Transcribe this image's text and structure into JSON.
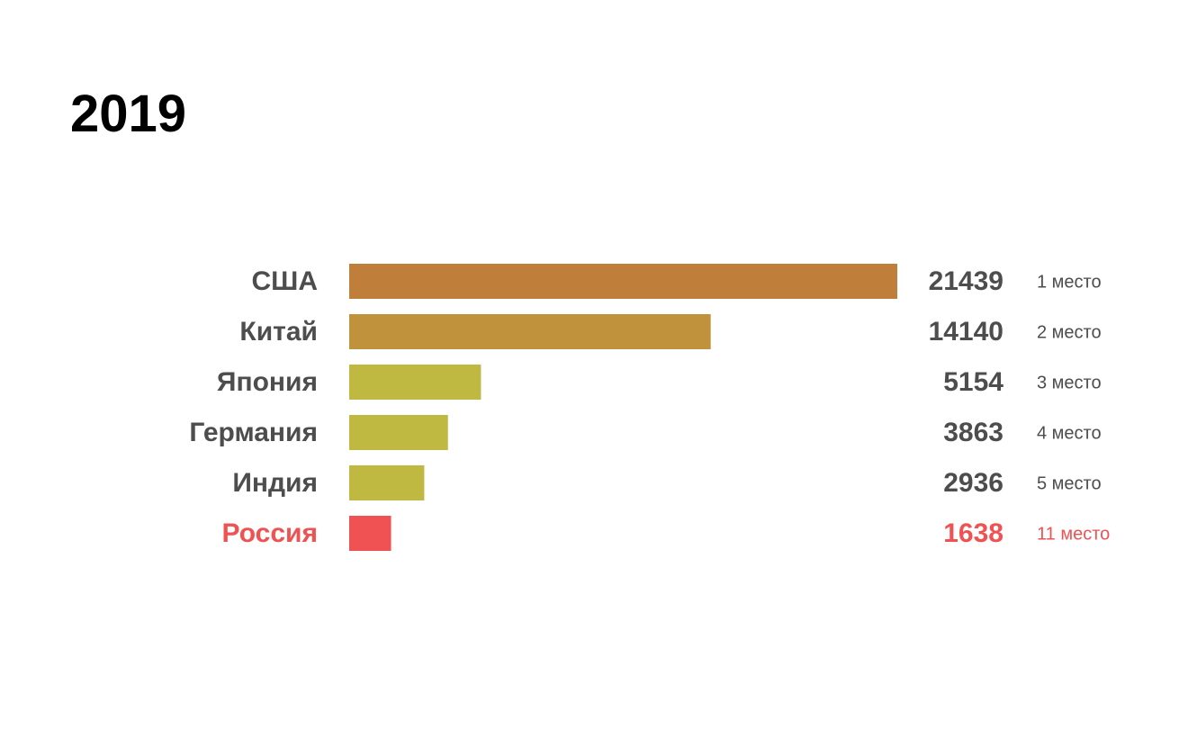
{
  "chart_data": {
    "type": "bar",
    "orientation": "horizontal",
    "title": "2019",
    "categories": [
      "США",
      "Китай",
      "Япония",
      "Германия",
      "Индия",
      "Россия"
    ],
    "values": [
      21439,
      14140,
      5154,
      3863,
      2936,
      1638
    ],
    "value_labels": [
      "21439",
      "14140",
      "5154",
      "3863",
      "2936",
      "1638"
    ],
    "rank_labels": [
      "1 место",
      "2 место",
      "3 место",
      "4 место",
      "5 место",
      "11 место"
    ],
    "bar_colors": [
      "#bf7f3b",
      "#c0923c",
      "#bfb841",
      "#bfb841",
      "#bfb841",
      "#f05253"
    ],
    "label_colors": [
      "#4d4d4d",
      "#4d4d4d",
      "#4d4d4d",
      "#4d4d4d",
      "#4d4d4d",
      "#f05253"
    ],
    "xlim": [
      0,
      21439
    ],
    "grid": false,
    "legend": "none"
  }
}
